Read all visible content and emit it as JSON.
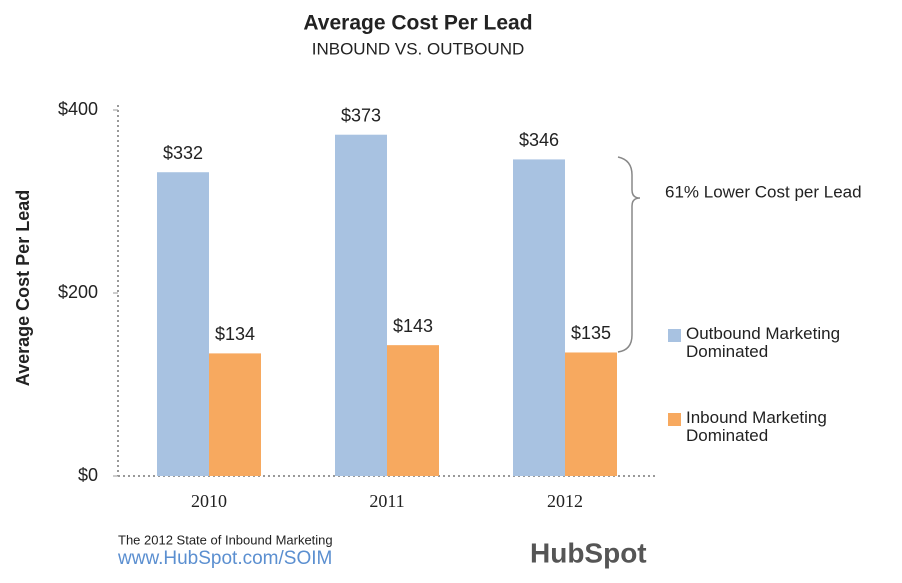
{
  "chart_data": {
    "type": "bar",
    "title": "Average Cost Per Lead",
    "subtitle": "INBOUND VS. OUTBOUND",
    "y_label": "Average Cost Per Lead",
    "categories": [
      "2010",
      "2011",
      "2012"
    ],
    "series": [
      {
        "name": "Outbound Marketing Dominated",
        "color": "#a8c2e1",
        "values": [
          332,
          373,
          346
        ],
        "value_labels": [
          "$332",
          "$373",
          "$346"
        ]
      },
      {
        "name": "Inbound Marketing Dominated",
        "color": "#f7a95f",
        "values": [
          134,
          143,
          135
        ],
        "value_labels": [
          "$134",
          "$143",
          "$135"
        ]
      }
    ],
    "ylim": [
      0,
      400
    ],
    "yticks": [
      {
        "value": 0,
        "label": "$0"
      },
      {
        "value": 200,
        "label": "$200"
      },
      {
        "value": 400,
        "label": "$400"
      }
    ],
    "annotation": "61% Lower Cost per Lead",
    "source": "The 2012 State of Inbound Marketing",
    "url": "www.HubSpot.com/SOIM",
    "brand": "HubSpot"
  }
}
